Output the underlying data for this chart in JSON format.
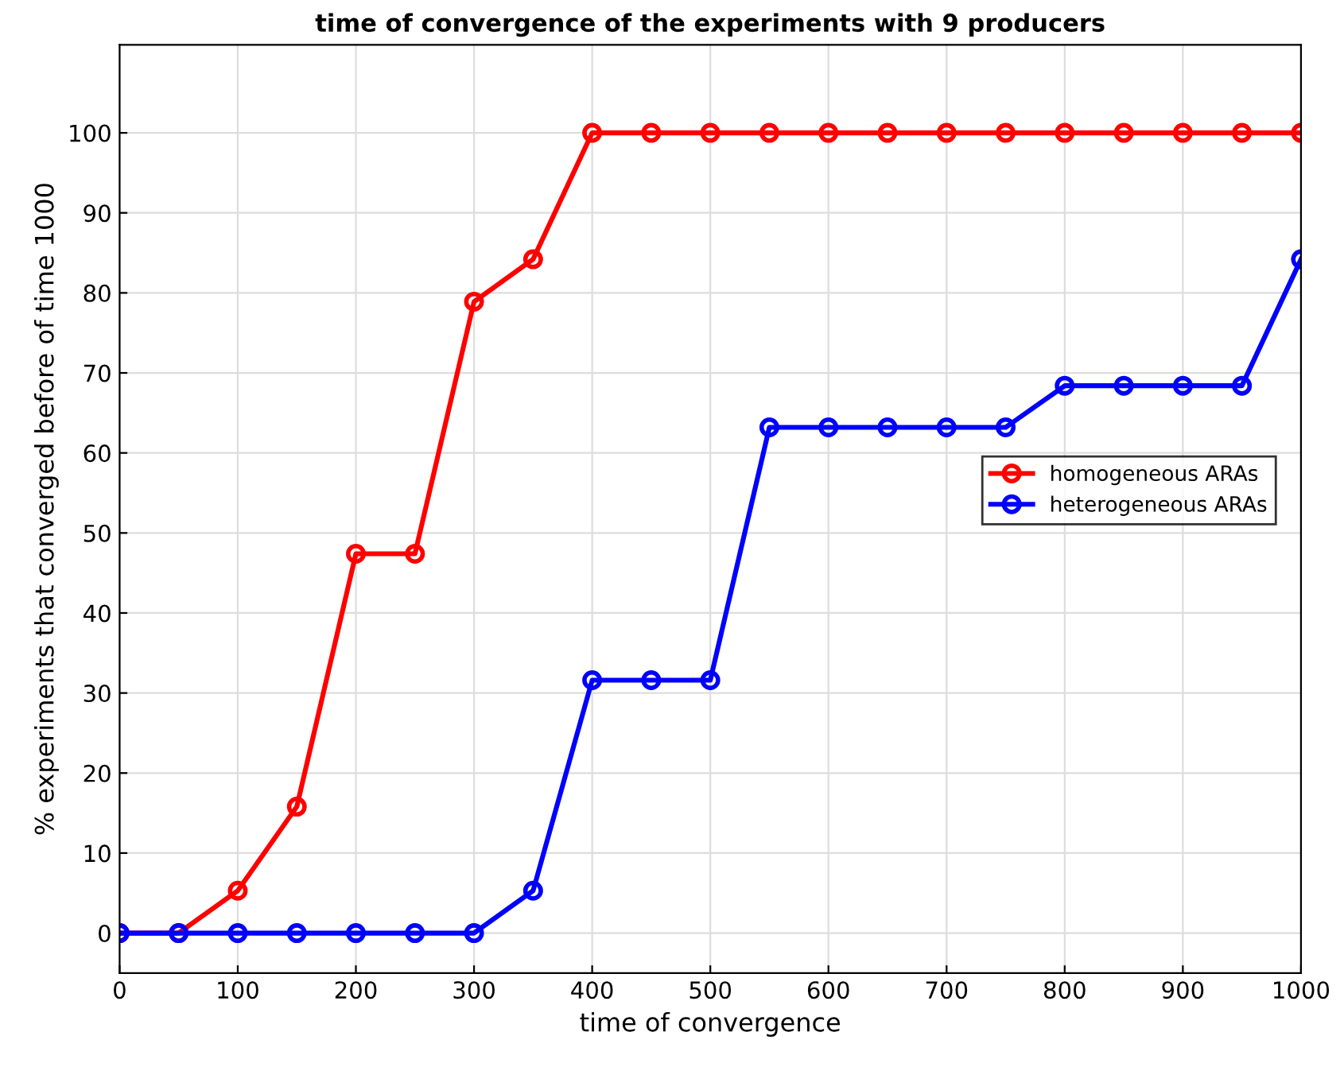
{
  "chart_data": {
    "type": "line",
    "title": "time of convergence of the experiments with 9 producers",
    "xlabel": "time of convergence",
    "ylabel": "% experiments that converged before of time 1000",
    "x": [
      0,
      50,
      100,
      150,
      200,
      250,
      300,
      350,
      400,
      450,
      500,
      550,
      600,
      650,
      700,
      750,
      800,
      850,
      900,
      950,
      1000
    ],
    "series": [
      {
        "name": "homogeneous ARAs",
        "color": "#ff0000",
        "values": [
          0,
          0,
          5.3,
          15.8,
          47.4,
          47.4,
          78.9,
          84.2,
          100,
          100,
          100,
          100,
          100,
          100,
          100,
          100,
          100,
          100,
          100,
          100,
          100
        ]
      },
      {
        "name": "heterogeneous ARAs",
        "color": "#0000ff",
        "values": [
          0,
          0,
          0,
          0,
          0,
          0,
          0,
          5.3,
          31.6,
          31.6,
          31.6,
          63.2,
          63.2,
          63.2,
          63.2,
          63.2,
          68.4,
          68.4,
          68.4,
          68.4,
          84.2
        ]
      }
    ],
    "xlim": [
      0,
      1000
    ],
    "ylim": [
      -5,
      111
    ],
    "xticks": [
      0,
      100,
      200,
      300,
      400,
      500,
      600,
      700,
      800,
      900,
      1000
    ],
    "yticks": [
      0,
      10,
      20,
      30,
      40,
      50,
      60,
      70,
      80,
      90,
      100
    ],
    "grid": true,
    "legend": "right",
    "marker": "circle",
    "line_style": "solid"
  }
}
